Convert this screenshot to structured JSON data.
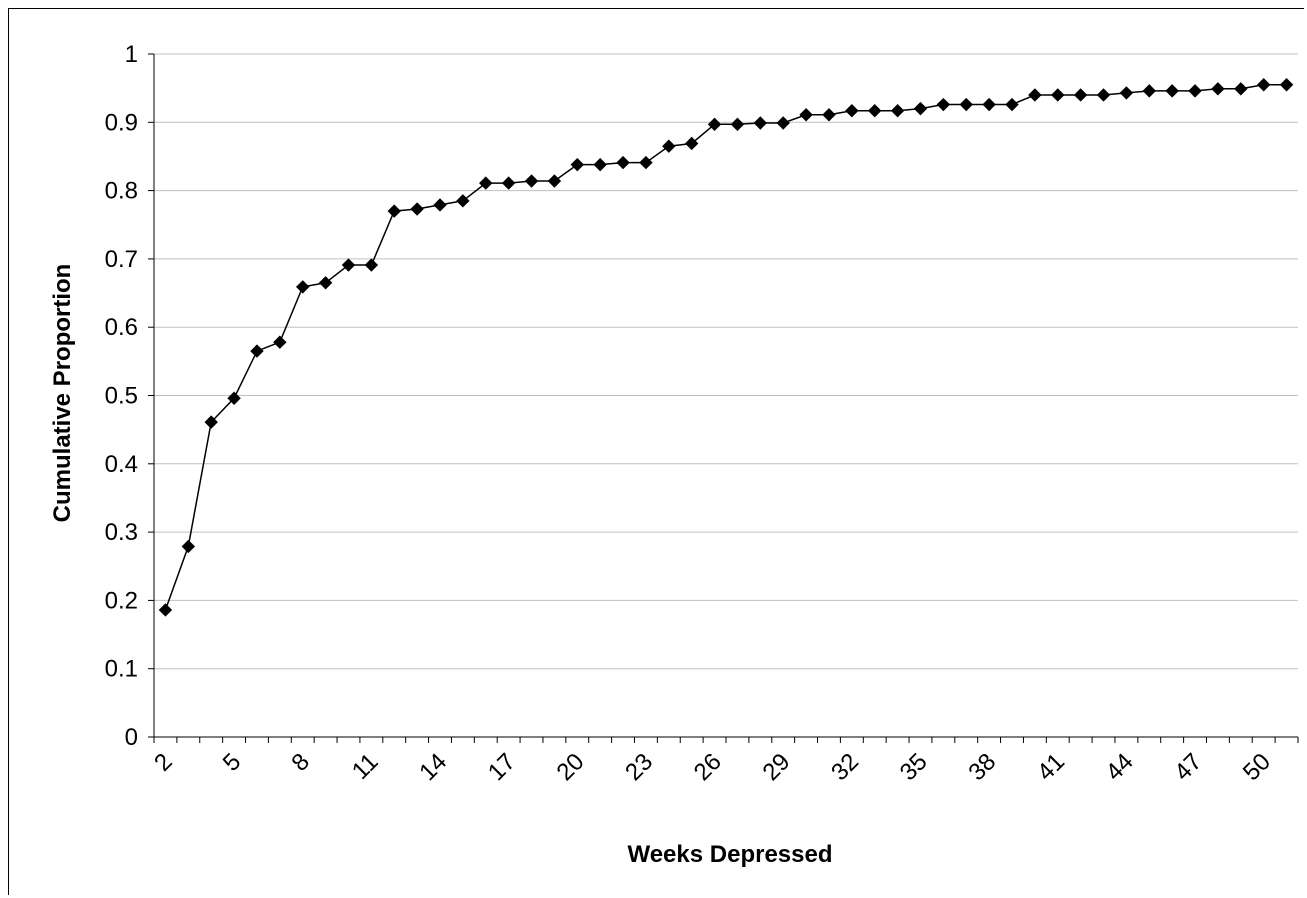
{
  "chart_data": {
    "type": "line",
    "title": "",
    "xlabel": "Weeks Depressed",
    "ylabel": "Cumulative Proportion",
    "ylim": [
      0,
      1
    ],
    "yticks": [
      "0",
      "0.1",
      "0.2",
      "0.3",
      "0.4",
      "0.5",
      "0.6",
      "0.7",
      "0.8",
      "0.9",
      "1"
    ],
    "xticks": [
      "2",
      "5",
      "8",
      "11",
      "14",
      "17",
      "20",
      "23",
      "26",
      "29",
      "32",
      "35",
      "38",
      "41",
      "44",
      "47",
      "50"
    ],
    "grid": true,
    "legend": "none",
    "marker": "diamond",
    "line_color": "#000000",
    "x": [
      2,
      3,
      4,
      5,
      6,
      7,
      8,
      9,
      10,
      11,
      12,
      13,
      14,
      15,
      16,
      17,
      18,
      19,
      20,
      21,
      22,
      23,
      24,
      25,
      26,
      27,
      28,
      29,
      30,
      31,
      32,
      33,
      34,
      35,
      36,
      37,
      38,
      39,
      40,
      41,
      42,
      43,
      44,
      45,
      46,
      47,
      48,
      49,
      50,
      51
    ],
    "values": [
      0.186,
      0.279,
      0.461,
      0.496,
      0.565,
      0.578,
      0.659,
      0.665,
      0.691,
      0.691,
      0.77,
      0.773,
      0.779,
      0.785,
      0.811,
      0.811,
      0.814,
      0.814,
      0.838,
      0.838,
      0.841,
      0.841,
      0.865,
      0.869,
      0.897,
      0.897,
      0.899,
      0.899,
      0.911,
      0.911,
      0.917,
      0.917,
      0.917,
      0.92,
      0.926,
      0.926,
      0.926,
      0.926,
      0.94,
      0.94,
      0.94,
      0.94,
      0.943,
      0.946,
      0.946,
      0.946,
      0.949,
      0.949,
      0.955,
      0.955
    ]
  }
}
